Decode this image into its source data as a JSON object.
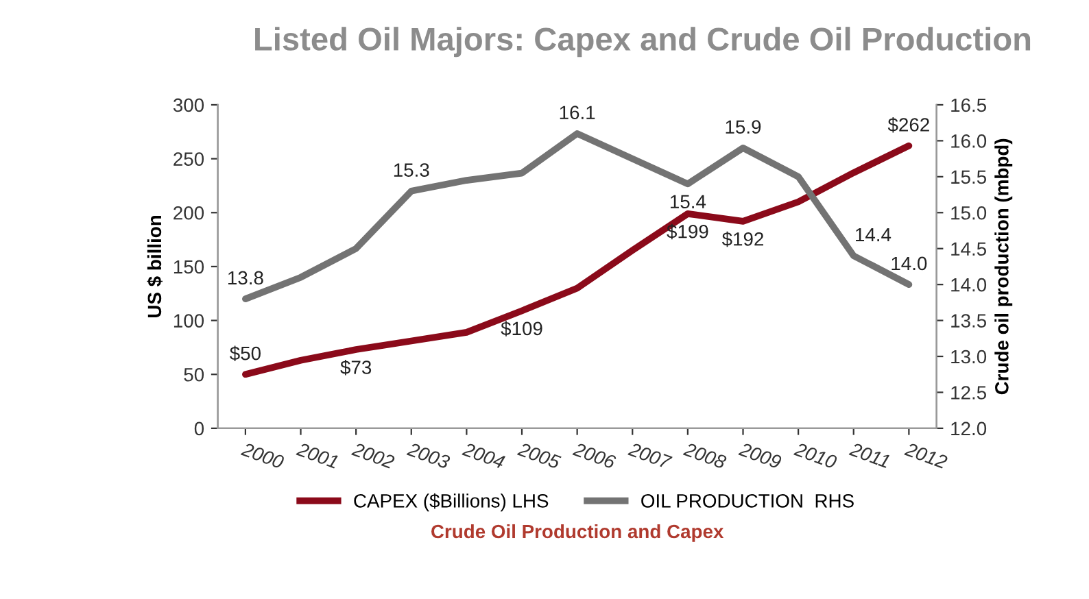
{
  "chart_data": {
    "type": "line",
    "title": "Listed Oil Majors: Capex and Crude Oil Production",
    "ylabel": "US $ billion",
    "y2label": "Crude oil production (mbpd)",
    "categories": [
      "2000",
      "2001",
      "2002",
      "2003",
      "2004",
      "2005",
      "2006",
      "2007",
      "2008",
      "2009",
      "2010",
      "2011",
      "2012"
    ],
    "series": [
      {
        "name": "CAPEX ($Billions) LHS",
        "color": "#8b0a1a",
        "values": [
          50,
          63,
          73,
          81,
          89,
          109,
          130,
          165,
          199,
          192,
          210,
          237,
          262
        ],
        "value_labels": [
          "$50",
          null,
          "$73",
          null,
          null,
          "$109",
          null,
          null,
          "$199",
          "$192",
          null,
          null,
          "$262"
        ]
      },
      {
        "name": "OIL PRODUCTION  RHS",
        "color": "#737373",
        "axis": "y2",
        "values": [
          13.8,
          14.1,
          14.5,
          15.3,
          15.45,
          15.55,
          16.1,
          15.75,
          15.4,
          15.9,
          15.5,
          14.4,
          14.0
        ],
        "value_labels": [
          "13.8",
          null,
          null,
          "15.3",
          null,
          null,
          "16.1",
          null,
          "15.4",
          "15.9",
          null,
          "14.4",
          "14.0"
        ]
      }
    ],
    "ylim": [
      0,
      300
    ],
    "yticks": [
      0,
      50,
      100,
      150,
      200,
      250,
      300
    ],
    "y2lim": [
      12.0,
      16.5
    ],
    "y2ticks": [
      {
        "value": 12.0,
        "label": "12.0"
      },
      {
        "value": 12.5,
        "label": "12.5"
      },
      {
        "value": 13.0,
        "label": "13.0"
      },
      {
        "value": 13.5,
        "label": "13.5"
      },
      {
        "value": 14.0,
        "label": "14.0"
      },
      {
        "value": 14.5,
        "label": "14.5"
      },
      {
        "value": 15.0,
        "label": "15.0"
      },
      {
        "value": 15.5,
        "label": "15.5"
      },
      {
        "value": 16.0,
        "label": "16.0"
      },
      {
        "value": 16.5,
        "label": "16.5"
      }
    ],
    "grid": false,
    "legend": "bottom",
    "marker": "none",
    "line_style": "solid",
    "annotations": [
      "Crude Oil Production and Capex"
    ]
  }
}
